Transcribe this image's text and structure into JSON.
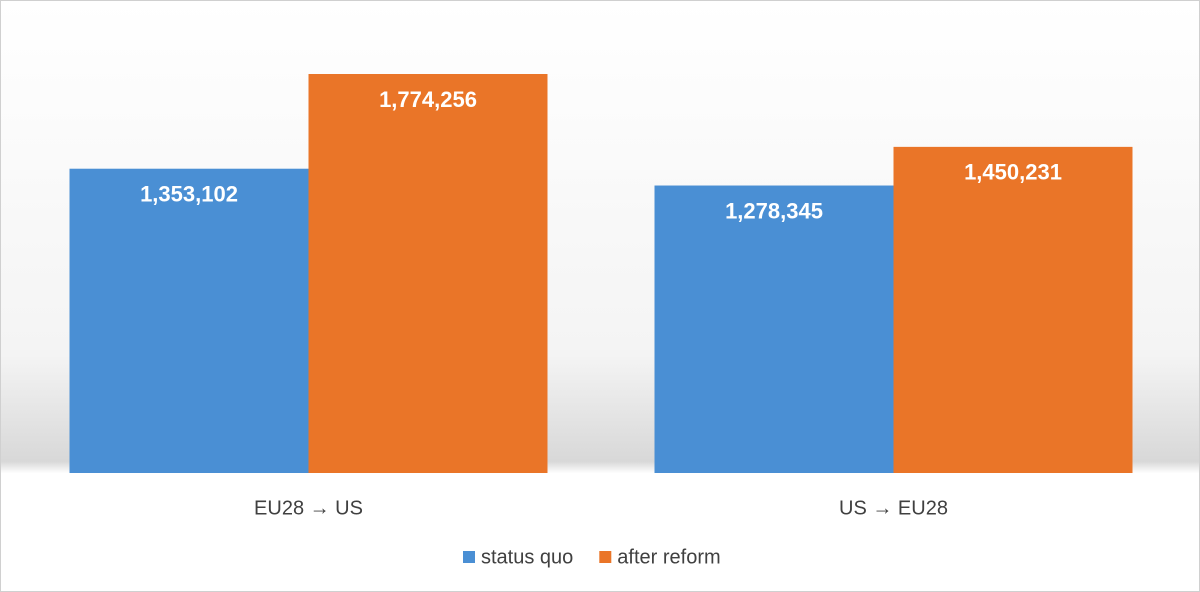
{
  "chart_data": {
    "type": "bar",
    "categories": [
      "EU28 → US",
      "US → EU28"
    ],
    "series": [
      {
        "name": "status quo",
        "color": "#4a8fd4",
        "values": [
          1353102,
          1278345
        ],
        "value_labels": [
          "1,353,102",
          "1,278,345"
        ]
      },
      {
        "name": "after reform",
        "color": "#ea7528",
        "values": [
          1774256,
          1450231
        ],
        "value_labels": [
          "1,774,256",
          "1,450,231"
        ]
      }
    ]
  }
}
